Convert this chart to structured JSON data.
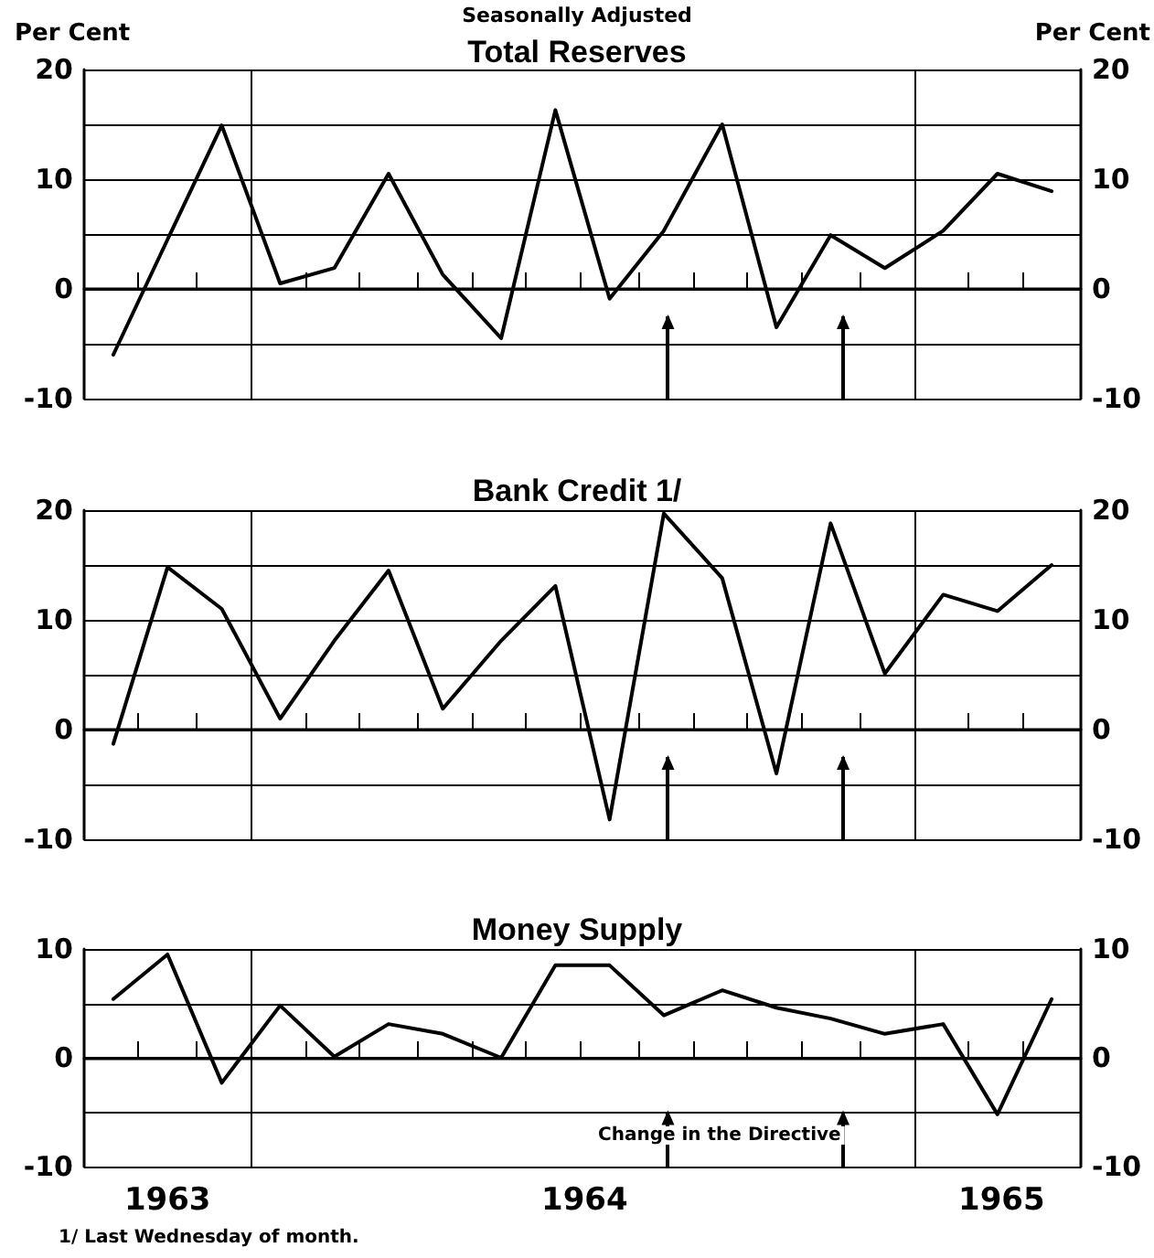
{
  "chart_data": [
    {
      "type": "line",
      "title": "Total Reserves",
      "subtitle": "Seasonally Adjusted",
      "ylabel": "Per Cent",
      "y2label": "Per Cent",
      "x": [
        1962.87,
        1963.0,
        1963.13,
        1963.27,
        1963.4,
        1963.53,
        1963.66,
        1963.8,
        1963.93,
        1964.06,
        1964.19,
        1964.33,
        1964.46,
        1964.59,
        1964.72,
        1964.86,
        1964.99,
        1965.12
      ],
      "series": [
        {
          "color": "#000000",
          "values": [
            -6,
            4.5,
            14.9,
            0.5,
            1.9,
            10.5,
            1.3,
            -4.5,
            16.3,
            -0.9,
            5.3,
            15,
            -3.5,
            4.9,
            1.9,
            5.3,
            10.5,
            8.9
          ]
        }
      ],
      "xlim": [
        1962.8,
        1965.19
      ],
      "xticks": [
        {
          "value": 1962.93,
          "label": null
        },
        {
          "value": 1963.07,
          "label": null
        },
        {
          "value": 1963.33,
          "label": null
        },
        {
          "value": 1963.46,
          "label": null
        },
        {
          "value": 1963.6,
          "label": null
        },
        {
          "value": 1963.73,
          "label": null
        },
        {
          "value": 1963.86,
          "label": null
        },
        {
          "value": 1963.99,
          "label": null
        },
        {
          "value": 1964.13,
          "label": null
        },
        {
          "value": 1964.26,
          "label": null
        },
        {
          "value": 1964.39,
          "label": null
        },
        {
          "value": 1964.52,
          "label": null
        },
        {
          "value": 1964.66,
          "label": null
        },
        {
          "value": 1964.92,
          "label": null
        },
        {
          "value": 1965.05,
          "label": null
        }
      ],
      "ylim": [
        -10,
        20
      ],
      "yticks": [
        -10,
        {
          "value": -5,
          "label": null
        },
        0,
        {
          "value": 5,
          "label": null
        },
        10,
        {
          "value": 15,
          "label": null
        },
        20
      ],
      "y2lim": [
        -10,
        20
      ],
      "y2ticks": [
        -10,
        {
          "value": -5,
          "label": null
        },
        0,
        {
          "value": 5,
          "label": null
        },
        10,
        {
          "value": 15,
          "label": null
        },
        20
      ],
      "ref_lines": [
        {
          "axis": "x",
          "value": 1963.2,
          "color": "#000000"
        },
        {
          "axis": "x",
          "value": 1964.79,
          "color": "#000000"
        },
        {
          "axis": "x",
          "value": 1964.2
        },
        {
          "axis": "x",
          "value": 1964.62
        }
      ],
      "grid": "y",
      "marker": "none",
      "line_style": "solid",
      "tick_labels": "y"
    },
    {
      "type": "line",
      "title": "Bank Credit 1/",
      "x": [
        1962.87,
        1963.0,
        1963.13,
        1963.27,
        1963.4,
        1963.53,
        1963.66,
        1963.8,
        1963.93,
        1964.06,
        1964.19,
        1964.33,
        1964.46,
        1964.59,
        1964.72,
        1964.86,
        1964.99,
        1965.12
      ],
      "series": [
        {
          "color": "#000000",
          "values": [
            -1.3,
            14.8,
            11,
            1,
            8.1,
            14.5,
            1.9,
            8.1,
            13.1,
            -8.2,
            19.7,
            13.8,
            -4,
            18.8,
            5.1,
            12.3,
            10.8,
            15
          ]
        }
      ],
      "xlim": [
        1962.8,
        1965.19
      ],
      "xticks": [
        {
          "value": 1962.93,
          "label": null
        },
        {
          "value": 1963.07,
          "label": null
        },
        {
          "value": 1963.33,
          "label": null
        },
        {
          "value": 1963.46,
          "label": null
        },
        {
          "value": 1963.6,
          "label": null
        },
        {
          "value": 1963.73,
          "label": null
        },
        {
          "value": 1963.86,
          "label": null
        },
        {
          "value": 1963.99,
          "label": null
        },
        {
          "value": 1964.13,
          "label": null
        },
        {
          "value": 1964.26,
          "label": null
        },
        {
          "value": 1964.39,
          "label": null
        },
        {
          "value": 1964.52,
          "label": null
        },
        {
          "value": 1964.66,
          "label": null
        },
        {
          "value": 1964.92,
          "label": null
        },
        {
          "value": 1965.05,
          "label": null
        }
      ],
      "ylim": [
        -10,
        20
      ],
      "yticks": [
        -10,
        {
          "value": -5,
          "label": null
        },
        0,
        {
          "value": 5,
          "label": null
        },
        10,
        {
          "value": 15,
          "label": null
        },
        20
      ],
      "y2lim": [
        -10,
        20
      ],
      "y2ticks": [
        -10,
        {
          "value": -5,
          "label": null
        },
        0,
        {
          "value": 5,
          "label": null
        },
        10,
        {
          "value": 15,
          "label": null
        },
        20
      ],
      "ref_lines": [
        {
          "axis": "x",
          "value": 1963.2,
          "color": "#000000"
        },
        {
          "axis": "x",
          "value": 1964.79,
          "color": "#000000"
        },
        {
          "axis": "x",
          "value": 1964.2
        },
        {
          "axis": "x",
          "value": 1964.62
        }
      ],
      "grid": "y",
      "marker": "none",
      "line_style": "solid",
      "tick_labels": "y"
    },
    {
      "type": "line",
      "title": "Money Supply",
      "x": [
        1962.87,
        1963.0,
        1963.13,
        1963.27,
        1963.4,
        1963.53,
        1963.66,
        1963.8,
        1963.93,
        1964.06,
        1964.19,
        1964.33,
        1964.46,
        1964.59,
        1964.72,
        1964.86,
        1964.99,
        1965.12
      ],
      "series": [
        {
          "color": "#000000",
          "values": [
            5.4,
            9.5,
            -2.3,
            4.8,
            0.1,
            3.1,
            2.2,
            0,
            8.5,
            8.5,
            3.9,
            6.2,
            4.6,
            3.6,
            2.2,
            3.1,
            -5.2,
            5.4
          ]
        }
      ],
      "xlim": [
        1962.8,
        1965.19
      ],
      "xticks": [
        {
          "value": 1962.93,
          "label": null
        },
        {
          "value": 1963.07,
          "label": null
        },
        {
          "value": 1963.33,
          "label": null
        },
        {
          "value": 1963.46,
          "label": null
        },
        {
          "value": 1963.6,
          "label": null
        },
        {
          "value": 1963.73,
          "label": null
        },
        {
          "value": 1963.86,
          "label": null
        },
        {
          "value": 1963.99,
          "label": null
        },
        {
          "value": 1964.13,
          "label": null
        },
        {
          "value": 1964.26,
          "label": null
        },
        {
          "value": 1964.39,
          "label": null
        },
        {
          "value": 1964.52,
          "label": null
        },
        {
          "value": 1964.66,
          "label": null
        },
        {
          "value": 1964.92,
          "label": null
        },
        {
          "value": 1965.05,
          "label": null
        },
        {
          "value": 1963,
          "label": "1963"
        },
        {
          "value": 1964,
          "label": "1964"
        },
        {
          "value": 1965,
          "label": "1965"
        }
      ],
      "ylim": [
        -10,
        10
      ],
      "yticks": [
        -10,
        {
          "value": -5,
          "label": null
        },
        0,
        {
          "value": 5,
          "label": null
        },
        10
      ],
      "y2lim": [
        -10,
        10
      ],
      "y2ticks": [
        -10,
        {
          "value": -5,
          "label": null
        },
        0,
        {
          "value": 5,
          "label": null
        },
        10
      ],
      "ref_lines": [
        {
          "axis": "x",
          "value": 1963.2,
          "color": "#000000"
        },
        {
          "axis": "x",
          "value": 1964.79,
          "color": "#000000"
        },
        {
          "axis": "x",
          "value": 1964.2
        },
        {
          "axis": "x",
          "value": 1964.62
        }
      ],
      "annotations": [
        "Change in the Directive",
        "1/ Last Wednesday of month."
      ],
      "grid": "y",
      "marker": "none",
      "line_style": "solid"
    }
  ]
}
